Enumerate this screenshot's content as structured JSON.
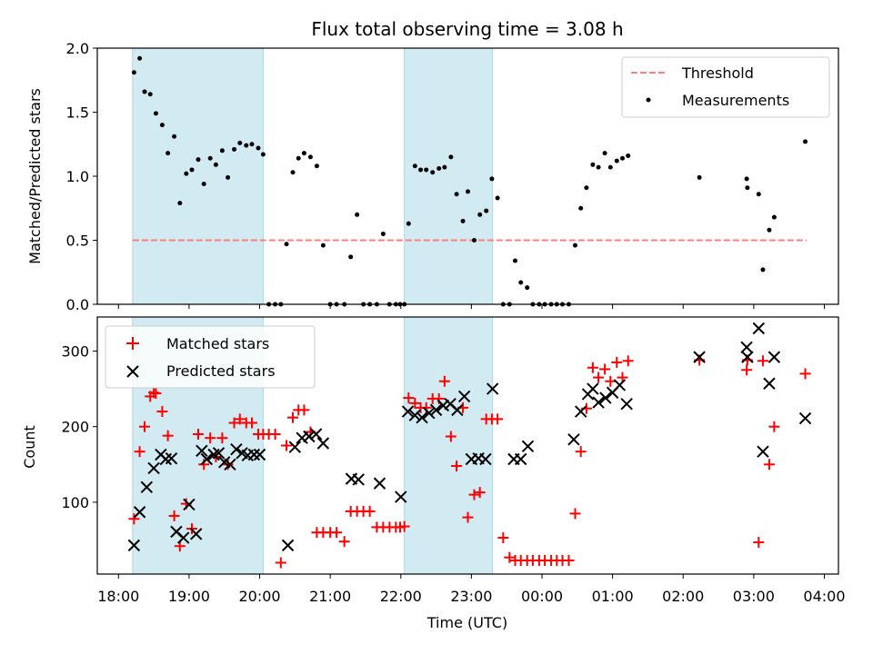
{
  "chart_data": [
    {
      "type": "scatter",
      "title": "Flux total observing time = 3.08 h",
      "ylabel": "Matched/Predicted stars",
      "xlabel": "",
      "ylim": [
        0,
        2.0
      ],
      "yticks": [
        "0.0",
        "0.5",
        "1.0",
        "1.5",
        "2.0"
      ],
      "shaded_spans_hours": [
        [
          18.2,
          20.05
        ],
        [
          22.05,
          23.3
        ]
      ],
      "shade_color": "#add8e6",
      "legend_position": "upper right",
      "threshold": {
        "name": "Threshold",
        "value": 0.5,
        "x_range": [
          18.2,
          27.75
        ],
        "color": "#ff7f7f"
      },
      "series": [
        {
          "name": "Measurements",
          "color": "#000000",
          "x": [
            18.22,
            18.3,
            18.37,
            18.45,
            18.53,
            18.62,
            18.7,
            18.79,
            18.87,
            18.96,
            19.04,
            19.13,
            19.21,
            19.3,
            19.38,
            19.47,
            19.55,
            19.64,
            19.72,
            19.81,
            19.89,
            19.98,
            20.05,
            20.13,
            20.22,
            20.3,
            20.38,
            20.47,
            20.55,
            20.63,
            20.72,
            20.81,
            20.9,
            21.0,
            21.09,
            21.2,
            21.29,
            21.38,
            21.47,
            21.56,
            21.66,
            21.75,
            21.84,
            21.93,
            21.99,
            22.05,
            22.11,
            22.2,
            22.28,
            22.36,
            22.45,
            22.54,
            22.62,
            22.71,
            22.79,
            22.88,
            22.95,
            23.04,
            23.12,
            23.21,
            23.29,
            23.37,
            23.45,
            23.54,
            23.62,
            23.7,
            23.79,
            23.87,
            23.96,
            24.04,
            24.13,
            24.21,
            24.29,
            24.38,
            24.47,
            24.55,
            24.63,
            24.72,
            24.8,
            24.89,
            24.97,
            25.06,
            25.14,
            25.22,
            26.23,
            26.9,
            26.91,
            27.07,
            27.13,
            27.22,
            27.29,
            27.73
          ],
          "y": [
            1.81,
            1.92,
            1.66,
            1.64,
            1.49,
            1.4,
            1.18,
            1.31,
            0.79,
            1.02,
            1.05,
            1.13,
            0.94,
            1.14,
            1.09,
            1.2,
            0.99,
            1.21,
            1.26,
            1.24,
            1.25,
            1.22,
            1.17,
            0.0,
            0.0,
            0.0,
            0.47,
            1.03,
            1.14,
            1.18,
            1.15,
            1.08,
            0.46,
            0.0,
            0.0,
            0.0,
            0.37,
            0.7,
            0.0,
            0.0,
            0.0,
            0.55,
            0.0,
            0.0,
            0.0,
            0.0,
            0.63,
            1.08,
            1.05,
            1.05,
            1.03,
            1.06,
            1.07,
            1.15,
            0.86,
            0.65,
            0.88,
            0.5,
            0.7,
            0.73,
            0.98,
            0.83,
            0.0,
            0.0,
            0.34,
            0.17,
            0.13,
            0.0,
            0.0,
            0.0,
            0.0,
            0.0,
            0.0,
            0.0,
            0.46,
            0.75,
            0.91,
            1.09,
            1.07,
            1.18,
            1.07,
            1.12,
            1.14,
            1.16,
            0.99,
            0.98,
            0.91,
            0.86,
            0.27,
            0.58,
            0.68,
            1.27
          ]
        }
      ]
    },
    {
      "type": "scatter",
      "title": "",
      "xlabel": "Time (UTC)",
      "ylabel": "Count",
      "ylim": [
        5,
        345
      ],
      "yticks": [
        "100",
        "200",
        "300"
      ],
      "xticks": [
        "18:00",
        "19:00",
        "20:00",
        "21:00",
        "22:00",
        "23:00",
        "00:00",
        "01:00",
        "02:00",
        "03:00",
        "04:00"
      ],
      "xlim_hours": [
        17.7,
        28.2
      ],
      "legend_position": "upper left",
      "series": [
        {
          "name": "Matched stars",
          "marker": "+",
          "color": "#ff0000",
          "x": [
            18.22,
            18.3,
            18.37,
            18.45,
            18.5,
            18.53,
            18.62,
            18.7,
            18.79,
            18.87,
            18.96,
            19.04,
            19.13,
            19.21,
            19.3,
            19.38,
            19.47,
            19.55,
            19.64,
            19.72,
            19.81,
            19.89,
            19.98,
            20.05,
            20.13,
            20.22,
            20.3,
            20.38,
            20.47,
            20.55,
            20.63,
            20.72,
            20.81,
            20.9,
            21.0,
            21.09,
            21.2,
            21.29,
            21.38,
            21.47,
            21.56,
            21.66,
            21.75,
            21.84,
            21.93,
            21.99,
            22.05,
            22.11,
            22.2,
            22.28,
            22.36,
            22.45,
            22.54,
            22.62,
            22.71,
            22.79,
            22.88,
            22.95,
            23.04,
            23.12,
            23.21,
            23.29,
            23.37,
            23.45,
            23.54,
            23.62,
            23.7,
            23.79,
            23.87,
            23.96,
            24.04,
            24.13,
            24.21,
            24.29,
            24.38,
            24.47,
            24.55,
            24.63,
            24.72,
            24.8,
            24.89,
            24.97,
            25.06,
            25.14,
            25.22,
            26.23,
            26.9,
            26.91,
            27.07,
            27.13,
            27.22,
            27.29,
            27.73
          ],
          "y": [
            78,
            167,
            200,
            240,
            245,
            244,
            220,
            188,
            82,
            42,
            98,
            65,
            190,
            150,
            185,
            160,
            185,
            150,
            205,
            210,
            205,
            205,
            190,
            190,
            190,
            190,
            20,
            175,
            212,
            222,
            222,
            193,
            60,
            60,
            60,
            60,
            48,
            88,
            88,
            88,
            88,
            67,
            67,
            67,
            67,
            67,
            68,
            238,
            231,
            225,
            225,
            237,
            237,
            260,
            187,
            148,
            225,
            80,
            110,
            113,
            210,
            210,
            210,
            53,
            27,
            23,
            23,
            23,
            23,
            23,
            23,
            23,
            23,
            23,
            23,
            85,
            167,
            224,
            278,
            265,
            276,
            260,
            285,
            265,
            287,
            288,
            275,
            288,
            47,
            287,
            150,
            200,
            270
          ]
        },
        {
          "name": "Predicted stars",
          "marker": "x",
          "color": "#000000",
          "x": [
            18.22,
            18.3,
            18.4,
            18.5,
            18.6,
            18.67,
            18.75,
            18.82,
            18.92,
            19.0,
            19.1,
            19.18,
            19.25,
            19.35,
            19.42,
            19.5,
            19.58,
            19.67,
            19.75,
            19.83,
            19.92,
            20.0,
            20.4,
            20.5,
            20.6,
            20.7,
            20.8,
            20.9,
            21.3,
            21.4,
            21.7,
            22.0,
            22.1,
            22.2,
            22.3,
            22.4,
            22.5,
            22.6,
            22.7,
            22.8,
            22.9,
            23.0,
            23.1,
            23.2,
            23.3,
            23.6,
            23.7,
            23.8,
            24.45,
            24.55,
            24.65,
            24.72,
            24.8,
            24.9,
            25.0,
            25.1,
            25.2,
            26.23,
            26.9,
            26.91,
            27.07,
            27.13,
            27.22,
            27.29,
            27.73
          ],
          "y": [
            43,
            87,
            120,
            145,
            163,
            157,
            158,
            61,
            53,
            97,
            58,
            168,
            157,
            163,
            165,
            153,
            150,
            170,
            165,
            162,
            163,
            163,
            43,
            173,
            185,
            187,
            190,
            178,
            131,
            130,
            125,
            107,
            220,
            215,
            212,
            218,
            222,
            228,
            230,
            222,
            240,
            157,
            158,
            157,
            250,
            157,
            157,
            174,
            183,
            220,
            243,
            250,
            232,
            238,
            245,
            255,
            230,
            292,
            305,
            292,
            330,
            167,
            257,
            292,
            211
          ]
        }
      ]
    }
  ]
}
